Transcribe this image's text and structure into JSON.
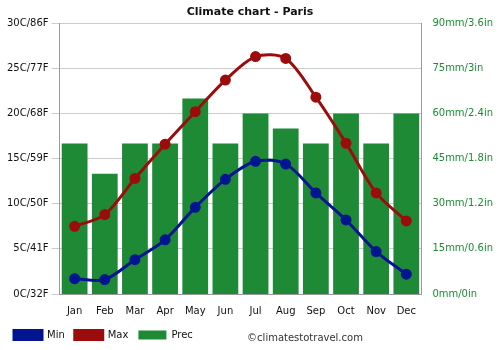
{
  "chart_data": {
    "type": "bar",
    "title": "Climate chart - Paris",
    "annotations": [
      "©climatestotravel.com"
    ],
    "categories": [
      "Jan",
      "Feb",
      "Mar",
      "Apr",
      "May",
      "Jun",
      "Jul",
      "Aug",
      "Sep",
      "Oct",
      "Nov",
      "Dec"
    ],
    "series": [
      {
        "name": "Prec",
        "type": "bar",
        "axis": "y2",
        "color": "#1f8a36",
        "values": [
          50,
          40,
          50,
          50,
          65,
          50,
          60,
          55,
          50,
          60,
          50,
          60
        ]
      },
      {
        "name": "Min",
        "type": "line",
        "color": "#00158f",
        "marker": "circle",
        "values": [
          1.7,
          1.6,
          3.8,
          6.0,
          9.6,
          12.7,
          14.7,
          14.4,
          11.2,
          8.2,
          4.7,
          2.2
        ]
      },
      {
        "name": "Max",
        "type": "line",
        "color": "#9c0c0c",
        "marker": "circle",
        "values": [
          7.5,
          8.8,
          12.8,
          16.6,
          20.2,
          23.7,
          26.3,
          26.1,
          21.8,
          16.7,
          11.2,
          8.1
        ]
      }
    ],
    "ylim": [
      0,
      30
    ],
    "yticks": [
      {
        "value": 0,
        "label": "0C/32F"
      },
      {
        "value": 5,
        "label": "5C/41F"
      },
      {
        "value": 10,
        "label": "10C/50F"
      },
      {
        "value": 15,
        "label": "15C/59F"
      },
      {
        "value": 20,
        "label": "20C/68F"
      },
      {
        "value": 25,
        "label": "25C/77F"
      },
      {
        "value": 30,
        "label": "30C/86F"
      }
    ],
    "y2lim": [
      0,
      90
    ],
    "y2ticks": [
      {
        "value": 0,
        "label": "0mm/0in"
      },
      {
        "value": 15,
        "label": "15mm/0.6in"
      },
      {
        "value": 30,
        "label": "30mm/1.2in"
      },
      {
        "value": 45,
        "label": "45mm/1.8in"
      },
      {
        "value": 60,
        "label": "60mm/2.4in"
      },
      {
        "value": 75,
        "label": "75mm/3in"
      },
      {
        "value": 90,
        "label": "90mm/3.6in"
      }
    ],
    "grid": true,
    "legend": "bottom"
  }
}
